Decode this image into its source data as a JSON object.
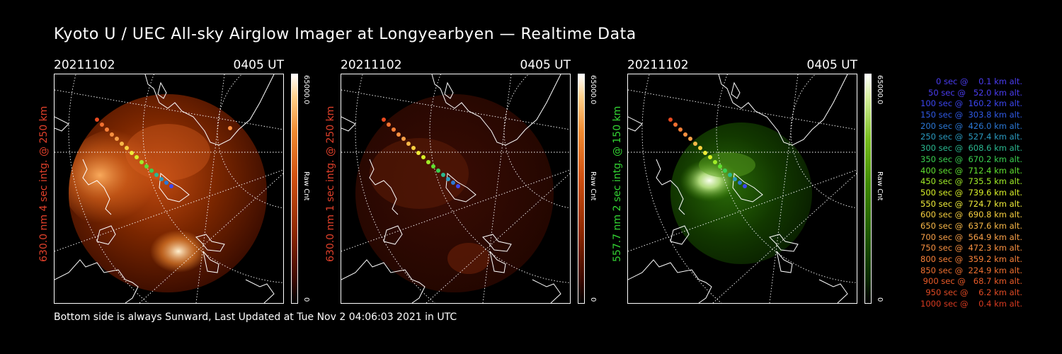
{
  "title": "Kyoto U / UEC All-sky Airglow Imager at Longyearbyen — Realtime Data",
  "footer": "Bottom side is always Sunward, Last Updated at Tue Nov  2 04:06:03 2021 in UTC",
  "panels": [
    {
      "date": "20211102",
      "time": "0405 UT",
      "ylabel": "630.0 nm 4 sec intg. @ 250 km",
      "label_color": "#e0402a",
      "cbar_max": "65000.0",
      "cbar_min": "0",
      "cbar_unit": "Raw Cnt",
      "colormap": [
        "#000000",
        "#3a0800",
        "#8a2600",
        "#d05010",
        "#f08a30",
        "#ffd08a",
        "#ffffff"
      ]
    },
    {
      "date": "20211102",
      "time": "0405 UT",
      "ylabel": "630.0 nm 1 sec intg. @ 250 km",
      "label_color": "#e0402a",
      "cbar_max": "65000.0",
      "cbar_min": "0",
      "cbar_unit": "Raw Cnt",
      "colormap": [
        "#000000",
        "#3a0800",
        "#8a2600",
        "#d05010",
        "#f08a30",
        "#ffd08a",
        "#ffffff"
      ]
    },
    {
      "date": "20211102",
      "time": "0405 UT",
      "ylabel": "557.7 nm 2 sec intg. @ 150 km",
      "label_color": "#33d433",
      "cbar_max": "65000.0",
      "cbar_min": "0",
      "cbar_unit": "Raw Cnt",
      "colormap": [
        "#000000",
        "#0a2a00",
        "#1f5a00",
        "#3f8a00",
        "#7abf20",
        "#d8f0a0",
        "#ffffff"
      ]
    }
  ],
  "trajectory_legend": [
    {
      "text": "   0 sec @    0.1 km alt.",
      "color": "#4a3cf0"
    },
    {
      "text": "  50 sec @   52.0 km alt.",
      "color": "#4a3cf0"
    },
    {
      "text": " 100 sec @  160.2 km alt.",
      "color": "#3c46f0"
    },
    {
      "text": " 150 sec @  303.8 km alt.",
      "color": "#2f5ae6"
    },
    {
      "text": " 200 sec @  426.0 km alt.",
      "color": "#2a78d6"
    },
    {
      "text": " 250 sec @  527.4 km alt.",
      "color": "#2a9ac0"
    },
    {
      "text": " 300 sec @  608.6 km alt.",
      "color": "#2ab890"
    },
    {
      "text": " 350 sec @  670.2 km alt.",
      "color": "#3ad050"
    },
    {
      "text": " 400 sec @  712.4 km alt.",
      "color": "#60e030"
    },
    {
      "text": " 450 sec @  735.5 km alt.",
      "color": "#a0ec28"
    },
    {
      "text": " 500 sec @  739.6 km alt.",
      "color": "#d8f028"
    },
    {
      "text": " 550 sec @  724.7 km alt.",
      "color": "#f0ec3a"
    },
    {
      "text": " 600 sec @  690.8 km alt.",
      "color": "#f8d040"
    },
    {
      "text": " 650 sec @  637.6 km alt.",
      "color": "#f8b848"
    },
    {
      "text": " 700 sec @  564.9 km alt.",
      "color": "#f8a048"
    },
    {
      "text": " 750 sec @  472.3 km alt.",
      "color": "#f89040"
    },
    {
      "text": " 800 sec @  359.2 km alt.",
      "color": "#f88038"
    },
    {
      "text": " 850 sec @  224.9 km alt.",
      "color": "#f07030"
    },
    {
      "text": " 900 sec @   68.7 km alt.",
      "color": "#e85a28"
    },
    {
      "text": " 950 sec @    6.2 km alt.",
      "color": "#e04a24"
    },
    {
      "text": "1000 sec @    0.4 km alt.",
      "color": "#d83a20"
    }
  ]
}
